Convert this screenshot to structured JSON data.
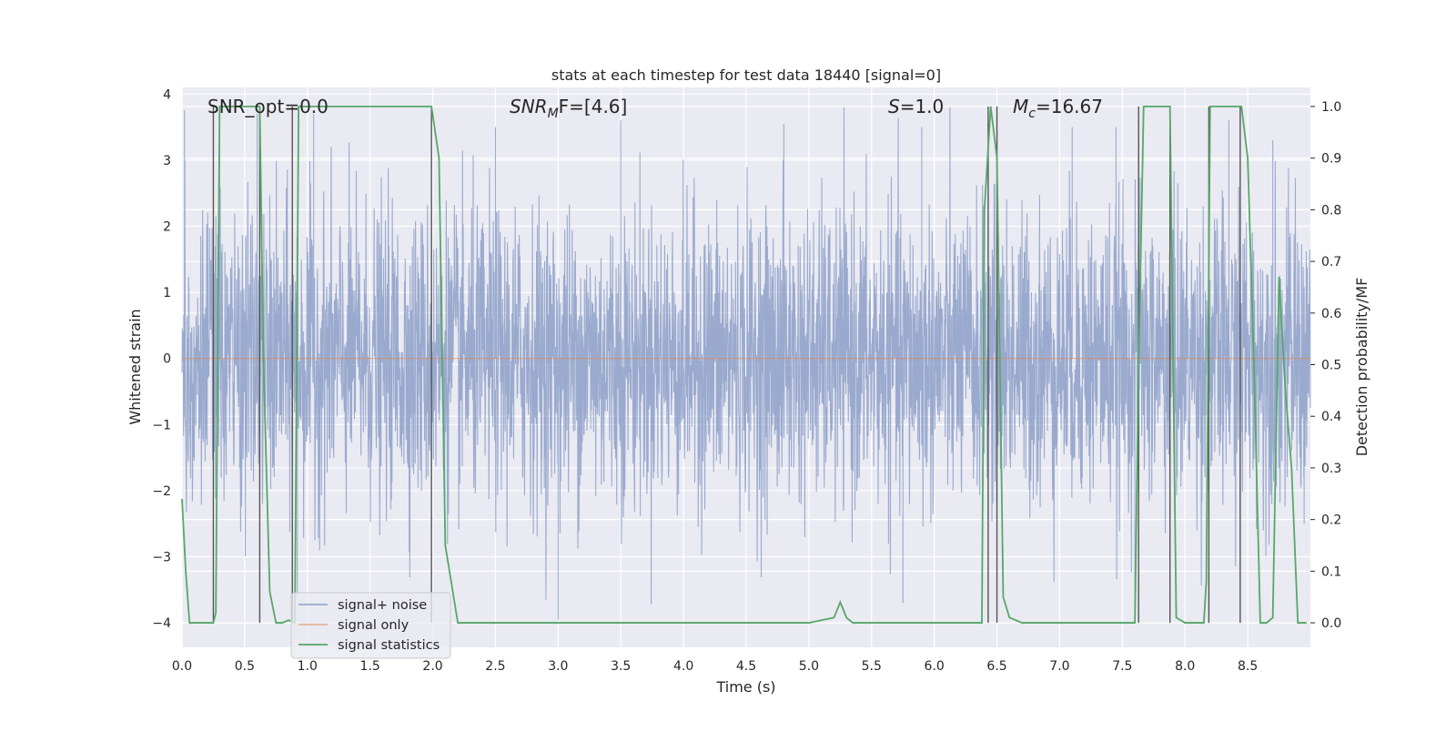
{
  "chart_data": {
    "type": "line",
    "title": "stats at each timestep for test data 18440 [signal=0]",
    "xlabel": "Time (s)",
    "ylabel_left": "Whitened strain",
    "ylabel_right": "Detection probability/MF",
    "xlim": [
      0.0,
      9.0
    ],
    "ylim_left": [
      -4.37,
      4.1
    ],
    "ylim_right": [
      -0.0475,
      1.037
    ],
    "xticks": [
      "0.0",
      "0.5",
      "1.0",
      "1.5",
      "2.0",
      "2.5",
      "3.0",
      "3.5",
      "4.0",
      "4.5",
      "5.0",
      "5.5",
      "6.0",
      "6.5",
      "7.0",
      "7.5",
      "8.0",
      "8.5"
    ],
    "yticks_left": [
      "4",
      "3",
      "2",
      "1",
      "0",
      "−1",
      "−2",
      "−3",
      "−4"
    ],
    "yticks_right": [
      "1.0",
      "0.9",
      "0.8",
      "0.7",
      "0.6",
      "0.5",
      "0.4",
      "0.3",
      "0.2",
      "0.1",
      "0.0"
    ],
    "grid": true,
    "legend_position": "bottom-left",
    "annotations": {
      "snr_opt": "SNR_opt=0.0",
      "snr_mf": "SNR_MF=[4.6]",
      "s": "S=1.0",
      "mc": "M_c=16.67"
    },
    "series": [
      {
        "name": "signal+ noise",
        "color": "#8c9fc8",
        "style": "dense noise",
        "x_range": [
          0.0,
          9.0
        ],
        "y_range": [
          -3.95,
          3.8
        ],
        "sample_peaks": {
          "x": [
            0.02,
            0.3,
            0.6,
            0.92,
            1.05,
            2.5,
            3.0,
            3.5,
            4.8,
            5.75,
            5.9,
            6.5,
            7.1,
            7.45,
            7.6,
            8.35,
            8.7,
            8.95
          ],
          "y": [
            3.75,
            3.5,
            3.7,
            -3.6,
            3.7,
            3.5,
            -3.95,
            3.6,
            3.55,
            -3.7,
            3.5,
            3.5,
            3.5,
            3.5,
            -3.6,
            3.6,
            3.3,
            -2.5
          ]
        }
      },
      {
        "name": "signal only",
        "color": "#dd8452",
        "x": [
          0.0,
          9.0
        ],
        "y": [
          0.0,
          0.0
        ]
      },
      {
        "name": "signal statistics",
        "color": "#55a868",
        "axis": "right",
        "x": [
          0.0,
          0.03,
          0.06,
          0.1,
          0.15,
          0.2,
          0.25,
          0.27,
          0.3,
          0.35,
          0.5,
          0.6,
          0.62,
          0.65,
          0.7,
          0.75,
          0.8,
          0.85,
          0.9,
          0.93,
          0.97,
          1.5,
          1.99,
          2.05,
          2.1,
          2.2,
          2.5,
          5.0,
          5.2,
          5.25,
          5.3,
          5.35,
          5.4,
          6.0,
          6.38,
          6.4,
          6.45,
          6.5,
          6.55,
          6.6,
          6.7,
          7.0,
          7.6,
          7.63,
          7.67,
          7.75,
          7.88,
          7.93,
          8.0,
          8.15,
          8.17,
          8.2,
          8.25,
          8.45,
          8.5,
          8.55,
          8.6,
          8.65,
          8.7,
          8.75,
          8.8,
          8.85,
          8.9,
          8.97
        ],
        "y": [
          0.24,
          0.1,
          0.0,
          0.0,
          0.0,
          0.0,
          0.0,
          0.02,
          1.0,
          1.0,
          1.0,
          1.0,
          1.0,
          0.5,
          0.06,
          0.0,
          0.0,
          0.005,
          0.0,
          1.0,
          1.0,
          1.0,
          1.0,
          0.9,
          0.15,
          0.0,
          0.0,
          0.0,
          0.01,
          0.04,
          0.01,
          0.0,
          0.0,
          0.0,
          0.0,
          0.8,
          1.0,
          0.9,
          0.05,
          0.01,
          0.0,
          0.0,
          0.0,
          0.5,
          1.0,
          1.0,
          1.0,
          0.01,
          0.0,
          0.0,
          0.08,
          1.0,
          1.0,
          1.0,
          0.9,
          0.5,
          0.0,
          0.0,
          0.01,
          0.67,
          0.45,
          0.3,
          0.0,
          0.0
        ]
      }
    ],
    "vertical_markers": [
      0.25,
      0.62,
      0.88,
      1.99,
      6.43,
      6.5,
      7.63,
      7.88,
      8.19,
      8.44
    ]
  }
}
